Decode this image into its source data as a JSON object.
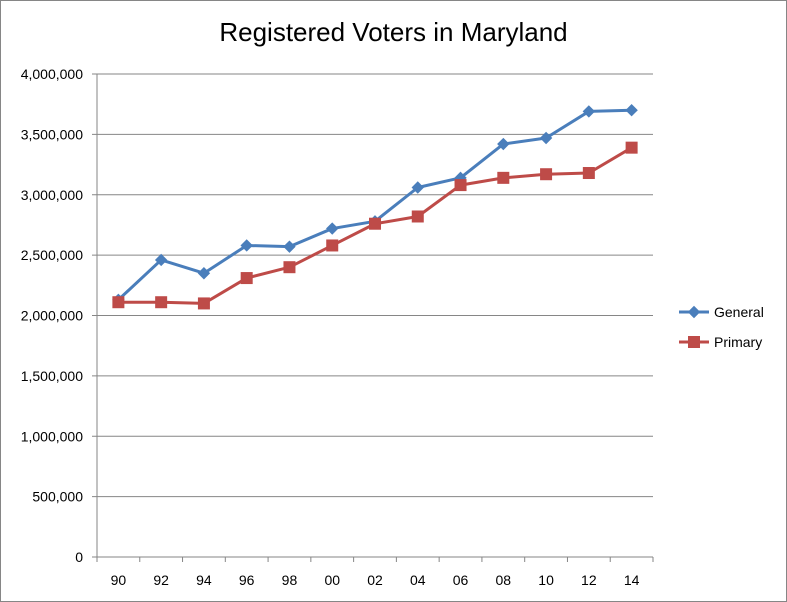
{
  "chart_data": {
    "type": "line",
    "title": "Registered Voters in Maryland",
    "xlabel": "",
    "ylabel": "",
    "categories": [
      "90",
      "92",
      "94",
      "96",
      "98",
      "00",
      "02",
      "04",
      "06",
      "08",
      "10",
      "12",
      "14"
    ],
    "ylim": [
      0,
      4000000
    ],
    "ytick_labels": [
      "0",
      "500,000",
      "1,000,000",
      "1,500,000",
      "2,000,000",
      "2,500,000",
      "3,000,000",
      "3,500,000",
      "4,000,000"
    ],
    "grid": true,
    "legend_position": "right",
    "series": [
      {
        "name": "General",
        "color": "#4a7ebb",
        "marker": "diamond",
        "values": [
          2130000,
          2460000,
          2350000,
          2580000,
          2570000,
          2720000,
          2780000,
          3060000,
          3140000,
          3420000,
          3470000,
          3690000,
          3700000
        ]
      },
      {
        "name": "Primary",
        "color": "#be4b48",
        "marker": "square",
        "values": [
          2110000,
          2110000,
          2100000,
          2310000,
          2400000,
          2580000,
          2760000,
          2820000,
          3080000,
          3140000,
          3170000,
          3180000,
          3390000
        ]
      }
    ]
  }
}
